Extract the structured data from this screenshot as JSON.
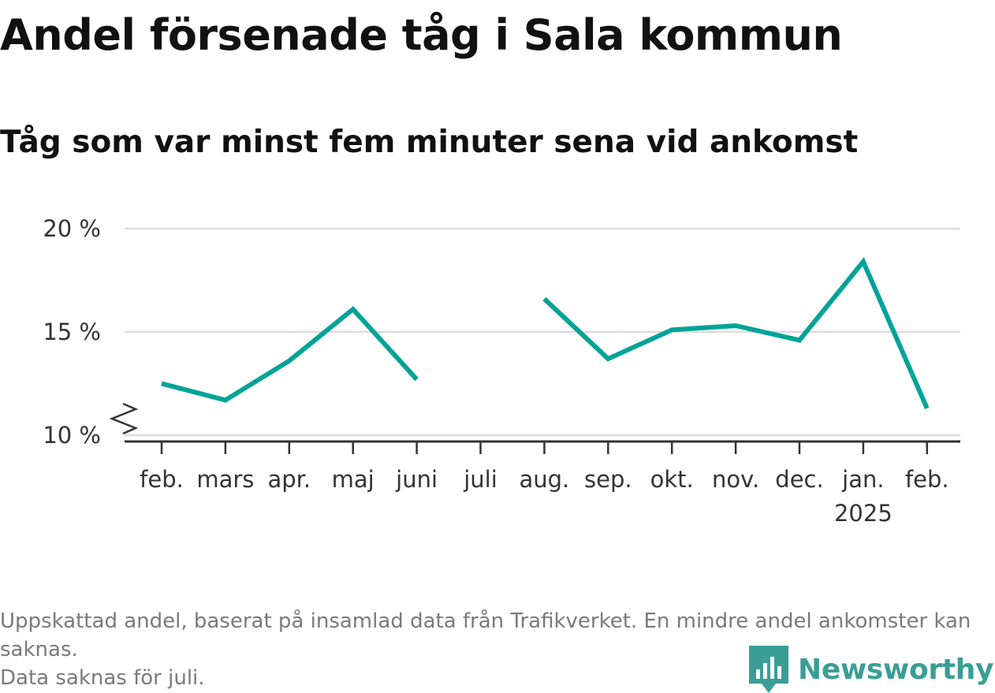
{
  "chart_data": {
    "type": "line",
    "title": "Andel försenade tåg i Sala kommun",
    "subtitle": "Tåg som var minst fem minuter sena vid ankomst",
    "categories": [
      "feb.",
      "mars",
      "apr.",
      "maj",
      "juni",
      "juli",
      "aug.",
      "sep.",
      "okt.",
      "nov.",
      "dec.",
      "jan.",
      "feb."
    ],
    "year_labels": [
      "",
      "",
      "",
      "",
      "",
      "",
      "",
      "",
      "",
      "",
      "",
      "2025",
      ""
    ],
    "series": [
      {
        "values": [
          12.5,
          11.7,
          13.6,
          16.1,
          12.7,
          null,
          16.6,
          13.7,
          15.1,
          15.3,
          14.6,
          18.4,
          11.3
        ],
        "color": "#00a398"
      }
    ],
    "ylim": [
      10,
      20
    ],
    "yticks": [
      10,
      15,
      20
    ],
    "ytick_labels": [
      "10 %",
      "15 %",
      "20 %"
    ],
    "y_axis_break": true,
    "grid": true
  },
  "footnote": {
    "line1": "Uppskattad andel, baserat på insamlad data från Trafikverket. En mindre andel ankomster kan saknas.",
    "line2": "Data saknas för juli."
  },
  "brand": {
    "name": "Newsworthy",
    "color": "#3a9e96",
    "icon": "bar-chart-speech-bubble-icon"
  }
}
